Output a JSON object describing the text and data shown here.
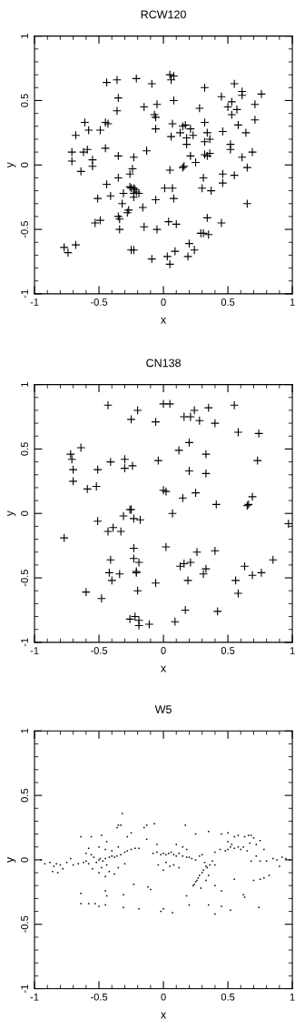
{
  "chart_data": [
    {
      "type": "scatter",
      "title": "RCW120",
      "xlabel": "x",
      "ylabel": "y",
      "marker": "cross",
      "grid": false,
      "xlim": [
        -1,
        1
      ],
      "ylim": [
        -1,
        1
      ],
      "xticks": [
        -1,
        -0.5,
        0,
        0.5,
        1
      ],
      "yticks": [
        -1,
        -0.5,
        0,
        0.5,
        1
      ],
      "series": [
        {
          "color": "#000000",
          "x": [
            0.05,
            0.08,
            0.06,
            -0.44,
            -0.36,
            -0.21,
            -0.09,
            0.32,
            0.55,
            0.61,
            0.61,
            0.76,
            0.45,
            -0.35,
            0.08,
            0.53,
            0.5,
            0.57,
            0.71,
            0.53,
            0.28,
            -0.15,
            -0.05,
            -0.36,
            -0.07,
            -0.06,
            0.71,
            -0.61,
            -0.45,
            -0.43,
            0.32,
            0.07,
            0.58,
            0.15,
            0.17,
            0.21,
            -0.58,
            -0.49,
            -0.06,
            -0.68,
            0.13,
            0.06,
            0.23,
            0.18,
            0.34,
            0.46,
            0.64,
            0.36,
            0.32,
            0.18,
            0.52,
            0.52,
            -0.71,
            -0.62,
            -0.59,
            -0.45,
            -0.13,
            0.32,
            0.34,
            0.36,
            0.69,
            -0.71,
            -0.55,
            -0.35,
            -0.23,
            0.21,
            0.61,
            -0.55,
            0.25,
            0.15,
            0.16,
            -0.24,
            0.65,
            -0.64,
            0.05,
            -0.26,
            0.46,
            0.55,
            -0.35,
            0.31,
            0.46,
            -0.44,
            -0.26,
            -0.25,
            -0.23,
            -0.22,
            -0.21,
            -0.19,
            -0.23,
            0.01,
            0.07,
            0.3,
            0.37,
            -0.31,
            -0.41,
            -0.51,
            -0.23,
            0.08,
            -0.06,
            -0.32,
            0.65,
            -0.16,
            -0.27,
            -0.28,
            -0.35,
            -0.34,
            0.34,
            -0.49,
            -0.53,
            0.04,
            0.1,
            0.45,
            -0.15,
            -0.34,
            -0.05,
            0.29,
            0.31,
            0.35,
            0.2,
            0.24,
            -0.77,
            -0.74,
            -0.68,
            -0.25,
            -0.23,
            0.09,
            0.03,
            0.19,
            -0.09,
            0.05
          ],
          "values": [
            0.7,
            0.69,
            0.66,
            0.64,
            0.66,
            0.67,
            0.63,
            0.6,
            0.63,
            0.57,
            0.54,
            0.55,
            0.53,
            0.52,
            0.5,
            0.49,
            0.45,
            0.43,
            0.47,
            0.39,
            0.44,
            0.45,
            0.47,
            0.42,
            0.39,
            0.37,
            0.35,
            0.33,
            0.33,
            0.32,
            0.33,
            0.32,
            0.31,
            0.3,
            0.31,
            0.28,
            0.27,
            0.27,
            0.28,
            0.23,
            0.25,
            0.22,
            0.23,
            0.21,
            0.25,
            0.26,
            0.25,
            0.2,
            0.18,
            0.16,
            0.16,
            0.12,
            0.1,
            0.1,
            0.12,
            0.13,
            0.11,
            0.08,
            0.07,
            0.09,
            0.1,
            0.03,
            0.04,
            0.07,
            0.06,
            0.07,
            0.06,
            -0.01,
            0.02,
            -0.02,
            -0.01,
            -0.03,
            -0.02,
            -0.05,
            -0.04,
            -0.07,
            -0.07,
            -0.08,
            -0.1,
            -0.1,
            -0.14,
            -0.15,
            -0.17,
            -0.18,
            -0.18,
            -0.19,
            -0.21,
            -0.22,
            -0.22,
            -0.18,
            -0.18,
            -0.18,
            -0.2,
            -0.22,
            -0.24,
            -0.26,
            -0.25,
            -0.26,
            -0.27,
            -0.3,
            -0.3,
            -0.33,
            -0.35,
            -0.37,
            -0.4,
            -0.42,
            -0.41,
            -0.43,
            -0.45,
            -0.44,
            -0.46,
            -0.45,
            -0.48,
            -0.5,
            -0.5,
            -0.53,
            -0.53,
            -0.54,
            -0.61,
            -0.66,
            -0.64,
            -0.68,
            -0.62,
            -0.66,
            -0.66,
            -0.67,
            -0.71,
            -0.71,
            -0.73,
            -0.77
          ]
        }
      ]
    },
    {
      "type": "scatter",
      "title": "CN138",
      "xlabel": "x",
      "ylabel": "y",
      "marker": "cross",
      "grid": false,
      "xlim": [
        -1,
        1
      ],
      "ylim": [
        -1,
        1
      ],
      "xticks": [
        -1,
        -0.5,
        0,
        0.5,
        1
      ],
      "yticks": [
        -1,
        -0.5,
        0,
        0.5,
        1
      ],
      "series": [
        {
          "color": "#000000",
          "x": [
            -0.43,
            0.0,
            0.05,
            -0.2,
            -0.25,
            -0.06,
            0.16,
            0.21,
            0.24,
            0.35,
            0.28,
            0.4,
            0.55,
            0.58,
            0.74,
            0.2,
            -0.64,
            0.12,
            -0.72,
            -0.71,
            -0.41,
            -0.3,
            -0.24,
            -0.3,
            -0.04,
            0.33,
            0.73,
            -0.7,
            -0.51,
            0.2,
            0.33,
            -0.7,
            -0.59,
            -0.52,
            0.0,
            0.02,
            0.25,
            0.15,
            0.69,
            0.65,
            0.66,
            0.41,
            -0.26,
            -0.25,
            0.07,
            -0.31,
            -0.23,
            -0.18,
            -0.51,
            0.97,
            -0.39,
            -0.43,
            -0.33,
            -0.77,
            -0.23,
            0.02,
            0.26,
            0.4,
            -0.41,
            -0.23,
            -0.19,
            0.85,
            0.13,
            0.16,
            0.21,
            0.33,
            0.31,
            0.63,
            -0.42,
            -0.34,
            -0.21,
            -0.21,
            -0.4,
            -0.06,
            0.19,
            0.56,
            0.69,
            0.76,
            -0.6,
            -0.2,
            0.58,
            -0.48,
            0.17,
            0.42,
            -0.26,
            -0.22,
            -0.19,
            -0.19,
            -0.11,
            0.09
          ],
          "values": [
            0.84,
            0.85,
            0.85,
            0.8,
            0.73,
            0.71,
            0.75,
            0.75,
            0.8,
            0.82,
            0.72,
            0.7,
            0.84,
            0.63,
            0.62,
            0.55,
            0.51,
            0.49,
            0.46,
            0.42,
            0.4,
            0.42,
            0.37,
            0.35,
            0.41,
            0.46,
            0.41,
            0.34,
            0.34,
            0.33,
            0.31,
            0.25,
            0.19,
            0.21,
            0.18,
            0.17,
            0.16,
            0.12,
            0.13,
            0.06,
            0.07,
            0.07,
            0.03,
            0.03,
            0.0,
            -0.02,
            -0.04,
            -0.05,
            -0.06,
            -0.08,
            -0.11,
            -0.14,
            -0.14,
            -0.19,
            -0.27,
            -0.26,
            -0.3,
            -0.29,
            -0.36,
            -0.35,
            -0.38,
            -0.36,
            -0.41,
            -0.39,
            -0.38,
            -0.43,
            -0.47,
            -0.41,
            -0.46,
            -0.47,
            -0.45,
            -0.46,
            -0.52,
            -0.54,
            -0.52,
            -0.52,
            -0.48,
            -0.46,
            -0.61,
            -0.6,
            -0.62,
            -0.66,
            -0.75,
            -0.76,
            -0.82,
            -0.8,
            -0.83,
            -0.87,
            -0.86,
            -0.84
          ]
        }
      ]
    },
    {
      "type": "scatter",
      "title": "W5",
      "xlabel": "x",
      "ylabel": "y",
      "marker": "square",
      "grid": false,
      "xlim": [
        -1,
        1
      ],
      "ylim": [
        -1,
        1
      ],
      "xticks": [
        -1,
        -0.5,
        0,
        0.5,
        1
      ],
      "yticks": [
        -1,
        -0.5,
        0,
        0.5,
        1
      ],
      "series": [
        {
          "color": "#000000",
          "x": [
            -0.95,
            -0.92,
            -0.88,
            -0.85,
            -0.83,
            -0.8,
            -0.78,
            -0.86,
            -0.82,
            -0.75,
            -0.72,
            -0.7,
            -0.66,
            -0.62,
            -0.6,
            -0.58,
            -0.56,
            -0.54,
            -0.52,
            -0.5,
            -0.49,
            -0.47,
            -0.45,
            -0.44,
            -0.42,
            -0.4,
            -0.38,
            -0.36,
            -0.33,
            -0.3,
            -0.28,
            -0.25,
            -0.22,
            -0.19,
            -0.6,
            -0.58,
            -0.5,
            -0.45,
            -0.4,
            -0.35,
            -0.55,
            -0.48,
            -0.42,
            -0.35,
            -0.3,
            -0.5,
            -0.45,
            -0.38,
            -0.64,
            -0.56,
            -0.48,
            -0.44,
            -0.35,
            -0.33,
            -0.36,
            -0.32,
            -0.25,
            -0.28,
            -0.15,
            -0.07,
            -0.13,
            -0.05,
            -0.64,
            -0.64,
            -0.58,
            -0.53,
            -0.5,
            -0.45,
            -0.44,
            -0.45,
            -0.31,
            -0.31,
            -0.19,
            -0.23,
            -0.12,
            -0.1,
            -0.08,
            -0.05,
            -0.02,
            0.0,
            0.02,
            0.04,
            0.06,
            0.08,
            0.1,
            0.12,
            0.15,
            0.18,
            0.2,
            0.22,
            0.25,
            0.28,
            0.3,
            0.02,
            0.05,
            0.08,
            0.12,
            0.0,
            -0.04,
            0.15,
            0.1,
            0.18,
            0.36,
            0.34,
            0.33,
            0.31,
            0.3,
            0.28,
            0.27,
            0.26,
            0.25,
            0.24,
            0.23,
            0.32,
            0.38,
            0.4,
            0.35,
            0.33,
            0.29,
            0.4,
            0.44,
            0.48,
            0.5,
            0.52,
            0.55,
            0.58,
            0.6,
            0.62,
            0.65,
            0.5,
            0.53,
            0.45,
            0.55,
            0.58,
            0.63,
            0.66,
            0.68,
            0.7,
            0.67,
            0.72,
            0.75,
            0.78,
            0.72,
            0.68,
            0.75,
            0.8,
            0.85,
            0.88,
            0.92,
            0.95,
            0.98,
            0.9,
            0.75,
            0.78,
            0.82,
            0.7,
            0.35,
            0.4,
            0.45,
            0.52,
            0.62,
            0.63,
            0.74,
            0.18,
            0.07,
            0.0,
            -0.02,
            0.45,
            0.4,
            0.55,
            0.2,
            0.17,
            0.35,
            0.5,
            0.25,
            -0.13
          ],
          "values": [
            0.0,
            -0.03,
            -0.02,
            -0.05,
            -0.03,
            -0.04,
            -0.07,
            -0.09,
            -0.1,
            -0.02,
            0.01,
            -0.04,
            -0.03,
            -0.02,
            -0.01,
            -0.03,
            0.04,
            0.02,
            -0.02,
            0.0,
            0.01,
            -0.01,
            0.01,
            -0.04,
            0.02,
            0.03,
            0.02,
            0.03,
            0.04,
            0.06,
            0.07,
            0.08,
            0.09,
            0.09,
            0.05,
            0.09,
            0.1,
            0.08,
            0.07,
            0.1,
            -0.07,
            -0.06,
            -0.09,
            -0.06,
            -0.03,
            -0.1,
            -0.13,
            -0.11,
            0.18,
            0.18,
            0.19,
            0.14,
            0.27,
            0.27,
            0.25,
            0.36,
            0.21,
            0.18,
            0.25,
            0.28,
            0.16,
            0.12,
            -0.26,
            -0.34,
            -0.34,
            -0.34,
            -0.36,
            -0.35,
            -0.28,
            -0.24,
            -0.27,
            -0.37,
            -0.38,
            -0.19,
            -0.21,
            -0.23,
            0.05,
            0.06,
            0.04,
            0.05,
            0.04,
            0.05,
            0.06,
            0.04,
            0.03,
            0.05,
            0.03,
            0.02,
            0.02,
            0.01,
            0.0,
            0.03,
            0.04,
            -0.02,
            -0.05,
            -0.04,
            -0.06,
            -0.08,
            -0.04,
            0.1,
            0.12,
            0.08,
            -0.04,
            -0.06,
            -0.05,
            -0.08,
            -0.1,
            -0.12,
            -0.14,
            -0.16,
            -0.17,
            -0.19,
            -0.2,
            -0.02,
            -0.01,
            -0.04,
            -0.12,
            -0.16,
            -0.22,
            0.06,
            0.08,
            0.07,
            0.08,
            0.1,
            0.09,
            0.1,
            0.08,
            0.1,
            0.07,
            0.14,
            0.12,
            0.2,
            0.18,
            0.19,
            0.18,
            0.19,
            0.19,
            0.17,
            0.13,
            0.12,
            0.15,
            0.08,
            0.03,
            -0.01,
            -0.01,
            -0.01,
            0.01,
            0.0,
            0.02,
            0.01,
            0.0,
            -0.05,
            -0.15,
            -0.14,
            -0.12,
            -0.16,
            -0.35,
            -0.42,
            -0.36,
            -0.39,
            -0.27,
            -0.29,
            -0.37,
            -0.28,
            -0.41,
            -0.38,
            -0.4,
            -0.24,
            -0.2,
            -0.15,
            -0.35,
            0.27,
            0.22,
            0.21,
            0.2,
            0.27
          ]
        }
      ]
    }
  ]
}
